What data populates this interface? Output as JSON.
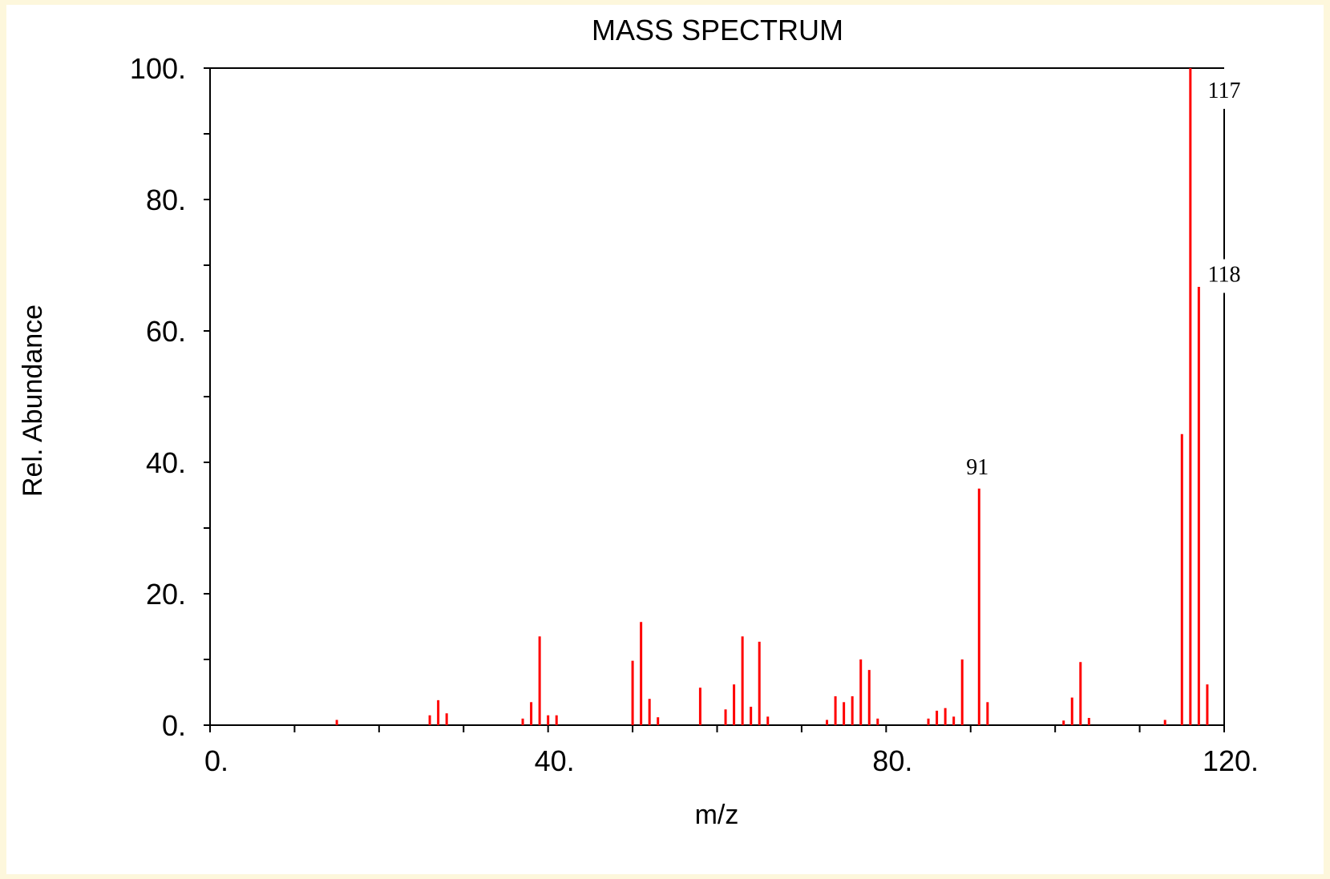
{
  "chart_data": {
    "type": "bar",
    "title": "MASS SPECTRUM",
    "xlabel": "m/z",
    "ylabel": "Rel. Abundance",
    "xlim": [
      0,
      120
    ],
    "ylim": [
      0,
      100
    ],
    "x_ticks": [
      "0.",
      "40.",
      "80.",
      "120."
    ],
    "y_ticks": [
      "0.",
      "20.",
      "40.",
      "60.",
      "80.",
      "100."
    ],
    "x_tick_values": [
      0,
      40,
      80,
      120
    ],
    "y_tick_values": [
      0,
      20,
      40,
      60,
      80,
      100
    ],
    "x_minor_step": 10,
    "y_minor_step": 10,
    "grid": false,
    "bar_color": "#ff0000",
    "peaks": [
      {
        "mz": 15,
        "abundance": 0.8
      },
      {
        "mz": 26,
        "abundance": 1.5
      },
      {
        "mz": 27,
        "abundance": 3.8
      },
      {
        "mz": 28,
        "abundance": 1.8
      },
      {
        "mz": 37,
        "abundance": 1.0
      },
      {
        "mz": 38,
        "abundance": 3.5
      },
      {
        "mz": 39,
        "abundance": 13.5
      },
      {
        "mz": 40,
        "abundance": 1.5
      },
      {
        "mz": 41,
        "abundance": 1.5
      },
      {
        "mz": 50,
        "abundance": 9.8
      },
      {
        "mz": 51,
        "abundance": 15.7
      },
      {
        "mz": 52,
        "abundance": 4.0
      },
      {
        "mz": 53,
        "abundance": 1.2
      },
      {
        "mz": 58,
        "abundance": 5.7
      },
      {
        "mz": 61,
        "abundance": 2.4
      },
      {
        "mz": 62,
        "abundance": 6.2
      },
      {
        "mz": 63,
        "abundance": 13.5
      },
      {
        "mz": 64,
        "abundance": 2.8
      },
      {
        "mz": 65,
        "abundance": 12.7
      },
      {
        "mz": 66,
        "abundance": 1.3
      },
      {
        "mz": 73,
        "abundance": 0.8
      },
      {
        "mz": 74,
        "abundance": 4.4
      },
      {
        "mz": 75,
        "abundance": 3.5
      },
      {
        "mz": 76,
        "abundance": 4.4
      },
      {
        "mz": 77,
        "abundance": 10.0
      },
      {
        "mz": 78,
        "abundance": 8.4
      },
      {
        "mz": 79,
        "abundance": 1.0
      },
      {
        "mz": 85,
        "abundance": 1.0
      },
      {
        "mz": 86,
        "abundance": 2.2
      },
      {
        "mz": 87,
        "abundance": 2.6
      },
      {
        "mz": 88,
        "abundance": 1.3
      },
      {
        "mz": 89,
        "abundance": 10.0
      },
      {
        "mz": 91,
        "abundance": 36.0,
        "label": "91"
      },
      {
        "mz": 92,
        "abundance": 3.5
      },
      {
        "mz": 101,
        "abundance": 0.7
      },
      {
        "mz": 102,
        "abundance": 4.2
      },
      {
        "mz": 103,
        "abundance": 9.6
      },
      {
        "mz": 104,
        "abundance": 1.1
      },
      {
        "mz": 113,
        "abundance": 0.8
      },
      {
        "mz": 115,
        "abundance": 44.3
      },
      {
        "mz": 116,
        "abundance": 100.0
      },
      {
        "mz": 117,
        "abundance": 66.7
      },
      {
        "mz": 118,
        "abundance": 6.2
      }
    ],
    "peak_callouts": [
      {
        "label": "117",
        "abundance": 95.5
      },
      {
        "label": "118",
        "abundance": 67.5
      }
    ]
  }
}
